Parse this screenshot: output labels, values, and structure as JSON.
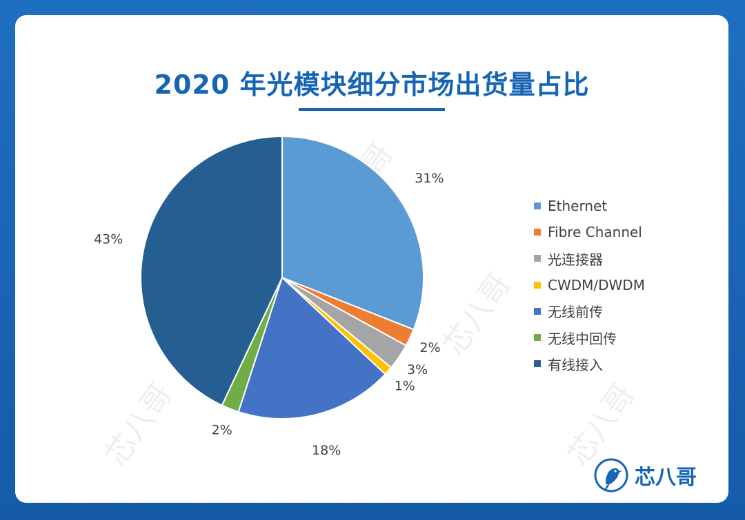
{
  "title": "2020 年光模块细分市场出货量占比",
  "brand": {
    "name": "芯八哥",
    "logo_icon": "kingfisher-bird-logo-icon"
  },
  "watermark": {
    "text": "芯八哥"
  },
  "chart_data": {
    "type": "pie",
    "title": "2020 年光模块细分市场出货量占比",
    "categories": [
      "Ethernet",
      "Fibre Channel",
      "光连接器",
      "CWDM/DWDM",
      "无线前传",
      "无线中回传",
      "有线接入"
    ],
    "values": [
      31,
      2,
      3,
      1,
      18,
      2,
      43
    ],
    "data_labels": [
      "31%",
      "2%",
      "3%",
      "1%",
      "18%",
      "2%",
      "43%"
    ],
    "colors": [
      "#5b9bd5",
      "#ed7d31",
      "#a5a5a5",
      "#ffc000",
      "#4472c4",
      "#70ad47",
      "#255e91"
    ],
    "unit": "%",
    "legend_position": "right"
  }
}
